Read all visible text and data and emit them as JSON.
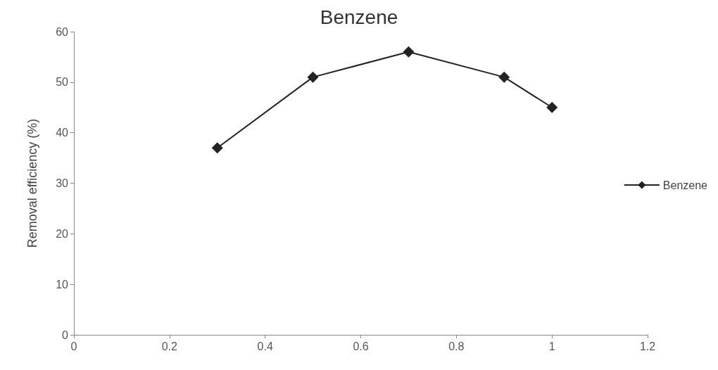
{
  "chart_data": {
    "type": "line",
    "title": "Benzene",
    "ylabel": "Removal efficiency (%)",
    "x": [
      0.3,
      0.5,
      0.7,
      0.9,
      1.0
    ],
    "series": [
      {
        "name": "Benzene",
        "color": "#222222",
        "values": [
          37,
          51,
          56,
          51,
          45
        ]
      }
    ],
    "xlim": [
      0,
      1.2
    ],
    "xticks": [
      0,
      0.2,
      0.4,
      0.6,
      0.8,
      1,
      1.2
    ],
    "ylim": [
      0,
      60
    ],
    "yticks": [
      0,
      10,
      20,
      30,
      40,
      50,
      60
    ],
    "grid": false,
    "legend": "right",
    "marker": "diamond",
    "line_style": "solid"
  }
}
